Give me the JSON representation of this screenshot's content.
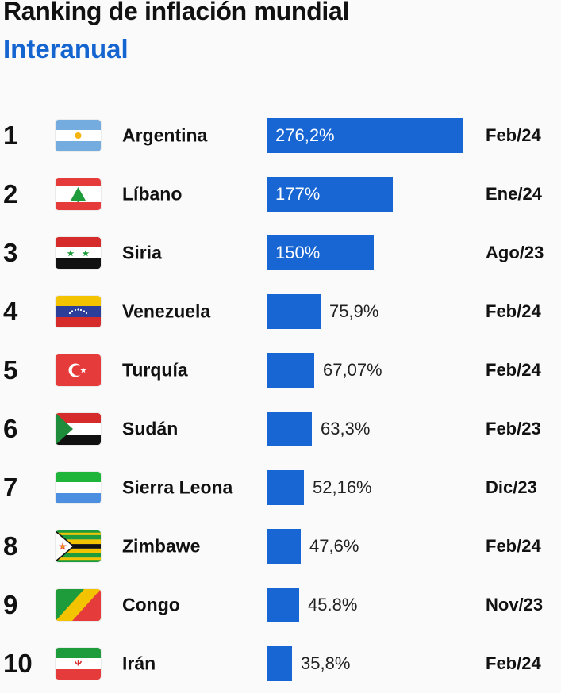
{
  "header": {
    "title": "Ranking de inflación mundial",
    "subtitle": "Interanual"
  },
  "colors": {
    "bar": "#1766d3",
    "subtitle": "#1565d0"
  },
  "chart_data": {
    "type": "bar",
    "orientation": "horizontal",
    "title": "Ranking de inflación mundial",
    "subtitle": "Interanual",
    "categories": [
      "Argentina",
      "Líbano",
      "Siria",
      "Venezuela",
      "Turquía",
      "Sudán",
      "Sierra Leona",
      "Zimbawe",
      "Congo",
      "Irán"
    ],
    "values": [
      276.2,
      177,
      150,
      75.9,
      67.07,
      63.3,
      52.16,
      47.6,
      45.8,
      35.8
    ],
    "value_labels": [
      "276,2%",
      "177%",
      "150%",
      "75,9%",
      "67,07%",
      "63,3%",
      "52,16%",
      "47,6%",
      "45.8%",
      "35,8%"
    ],
    "ranks": [
      "1",
      "2",
      "3",
      "4",
      "5",
      "6",
      "7",
      "8",
      "9",
      "10"
    ],
    "dates": [
      "Feb/24",
      "Ene/24",
      "Ago/23",
      "Feb/24",
      "Feb/24",
      "Feb/23",
      "Dic/23",
      "Feb/24",
      "Nov/23",
      "Feb/24"
    ],
    "flag_icons": [
      "argentina-flag-icon",
      "lebanon-flag-icon",
      "syria-flag-icon",
      "venezuela-flag-icon",
      "turkey-flag-icon",
      "sudan-flag-icon",
      "sierra-leone-flag-icon",
      "zimbabwe-flag-icon",
      "congo-flag-icon",
      "iran-flag-icon"
    ],
    "xlabel": "",
    "ylabel": "",
    "grid": false,
    "legend": "none"
  }
}
